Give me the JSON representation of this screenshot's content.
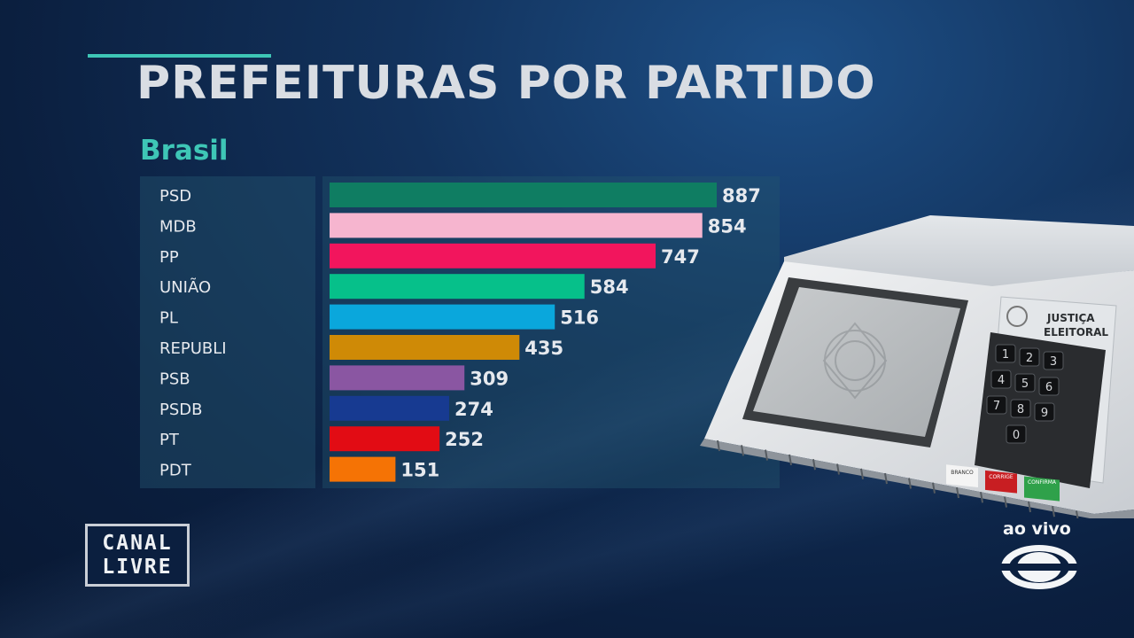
{
  "header": {
    "title": "PREFEITURAS POR PARTIDO",
    "subtitle": "Brasil"
  },
  "chart_data": {
    "type": "bar",
    "orientation": "horizontal",
    "title": "PREFEITURAS POR PARTIDO",
    "subtitle": "Brasil",
    "categories": [
      "PSD",
      "MDB",
      "PP",
      "UNIÃO",
      "PL",
      "REPUBLI",
      "PSB",
      "PSDB",
      "PT",
      "PDT"
    ],
    "values": [
      887,
      854,
      747,
      584,
      516,
      435,
      309,
      274,
      252,
      151
    ],
    "colors": [
      "#0f7d62",
      "#f6b5cf",
      "#f2155d",
      "#06c08a",
      "#0aa7dc",
      "#cf8a06",
      "#8a56a2",
      "#173a91",
      "#e20c14",
      "#f57305"
    ],
    "xlim": [
      0,
      887
    ],
    "data_labels": true,
    "legend": "none",
    "grid": false
  },
  "branding": {
    "program_logo_line1": "CANAL",
    "program_logo_line2": "LIVRE",
    "live_label": "ao vivo",
    "network_logo_icon": "band-eye-logo-icon"
  },
  "illustration": {
    "icon": "voting-machine-icon",
    "panel_text_line1": "JUSTIÇA",
    "panel_text_line2": "ELEITORAL",
    "keys": [
      "1",
      "2",
      "3",
      "4",
      "5",
      "6",
      "7",
      "8",
      "9",
      "0"
    ],
    "button_branco": "BRANCO",
    "button_corrige": "CORRIGE",
    "button_confirma": "CONFIRMA"
  }
}
